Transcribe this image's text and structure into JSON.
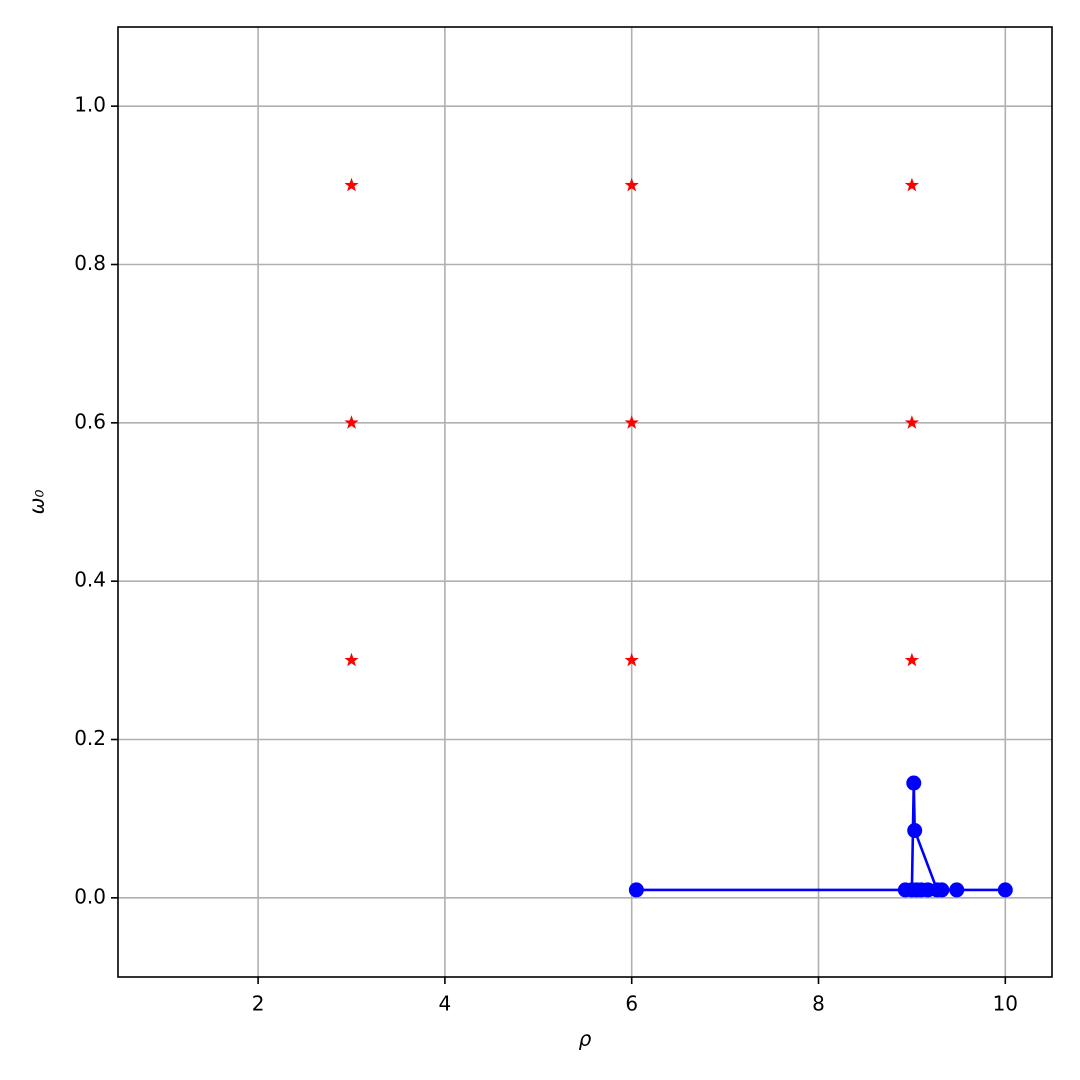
{
  "chart_data": {
    "type": "scatter",
    "xlabel": "ρ",
    "ylabel": "ω₀",
    "xlim": [
      0.5,
      10.5
    ],
    "ylim": [
      -0.1,
      1.1
    ],
    "xticks": [
      2,
      4,
      6,
      8,
      10
    ],
    "yticks": [
      {
        "value": 0,
        "label": "0.0"
      },
      0.2,
      0.4,
      0.6,
      0.8,
      {
        "value": 1,
        "label": "1.0"
      }
    ],
    "grid": true,
    "series": [
      {
        "color": "#ff0000",
        "marker": "star",
        "line": false,
        "x": [
          3,
          3,
          3,
          6,
          6,
          6,
          9,
          9,
          9
        ],
        "values": [
          0.3,
          0.6,
          0.9,
          0.3,
          0.6,
          0.9,
          0.3,
          0.6,
          0.9
        ]
      },
      {
        "color": "#0000ff",
        "marker": "circle",
        "line": true,
        "x": [
          10.0,
          6.05,
          8.93,
          9.0,
          9.02,
          9.03,
          9.27,
          9.17,
          9.1,
          9.05,
          9.32,
          9.48
        ],
        "values": [
          0.01,
          0.01,
          0.01,
          0.01,
          0.145,
          0.085,
          0.01,
          0.01,
          0.01,
          0.01,
          0.01,
          0.01
        ]
      }
    ]
  }
}
